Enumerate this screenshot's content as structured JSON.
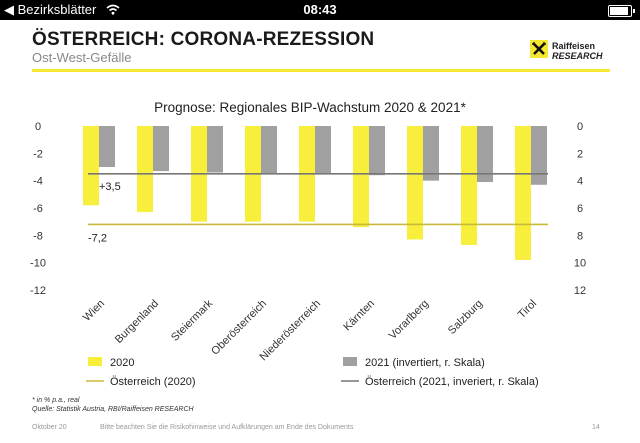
{
  "status_bar": {
    "back_label": "◀ Bezirksblätter",
    "time": "08:43"
  },
  "slide": {
    "title": "ÖSTERREICH: CORONA-REZESSION",
    "subtitle": "Ost-West-Gefälle",
    "logo_line1": "Raiffeisen",
    "logo_line2": "RESEARCH",
    "footnote_1": "* in % p.a., real",
    "footnote_2": "Quelle: Statistik Austria, RBI/Raiffeisen RESEARCH",
    "date": "Oktober 20",
    "disclaimer": "Bitte beachten Sie die Risikohinweise und Aufklärungen am Ende des Dokuments",
    "page_number": "14"
  },
  "colors": {
    "yellow": "#f7ef3c",
    "gray": "#a0a0a0",
    "line_yellow": "#c9b93a",
    "line_gray": "#777777",
    "accent": "#f5e830"
  },
  "chart_data": {
    "type": "bar",
    "title": "Prognose: Regionales BIP-Wachstum 2020 & 2021*",
    "categories": [
      "Wien",
      "Burgenland",
      "Steiermark",
      "Oberösterreich",
      "Niederösterreich",
      "Kärnten",
      "Vorarlberg",
      "Salzburg",
      "Tirol"
    ],
    "series": [
      {
        "name": "2020",
        "axis": "left",
        "values": [
          -5.8,
          -6.3,
          -7.0,
          -7.0,
          -7.0,
          -7.4,
          -8.3,
          -8.7,
          -9.8
        ]
      },
      {
        "name": "2021 (invertiert, r. Skala)",
        "axis": "right",
        "inverted": true,
        "values": [
          3.0,
          3.3,
          3.4,
          3.5,
          3.5,
          3.6,
          4.0,
          4.1,
          4.3
        ]
      }
    ],
    "reference_lines": [
      {
        "name": "Österreich (2020)",
        "axis": "left",
        "value": -7.2,
        "label": "-7,2"
      },
      {
        "name": "Österreich (2021, inveriert, r. Skala)",
        "axis": "right",
        "value": 3.5,
        "label": "+3,5"
      }
    ],
    "left_axis": {
      "ylim": [
        -12,
        0
      ],
      "ticks": [
        "0",
        "-2",
        "-4",
        "-6",
        "-8",
        "-10",
        "-12"
      ]
    },
    "right_axis": {
      "ylim": [
        0,
        12
      ],
      "inverted": true,
      "ticks": [
        "0",
        "2",
        "4",
        "6",
        "8",
        "10",
        "12"
      ]
    },
    "legend_position": "bottom",
    "grid": false
  }
}
